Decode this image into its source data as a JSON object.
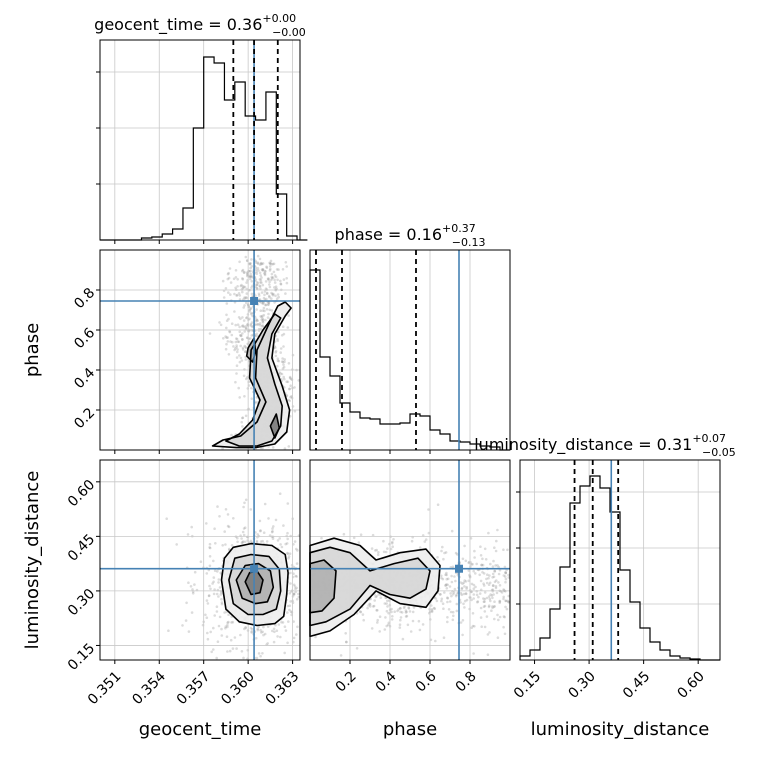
{
  "chart_data": {
    "type": "corner",
    "parameters": [
      "geocent_time",
      "phase",
      "luminosity_distance"
    ],
    "truths": {
      "geocent_time": 0.3604,
      "phase": 0.745,
      "luminosity_distance": 0.361
    },
    "colors": {
      "truth": "#4682b4",
      "hist": "#000000",
      "grid": "#c8c8c8",
      "points": "#9a9a9a"
    },
    "grid": true,
    "diagonal": [
      {
        "param": "geocent_time",
        "title_text": "geocent_time = 0.36",
        "title_sup": "+0.00",
        "title_sub": "−0.00",
        "quantiles": [
          0.359,
          0.3604,
          0.362
        ],
        "xlim": [
          0.35,
          0.3635
        ],
        "ylim": [
          0,
          1.0
        ],
        "bin_edges": [
          0.35,
          0.3507,
          0.3514,
          0.3521,
          0.3528,
          0.3535,
          0.3542,
          0.3549,
          0.3556,
          0.3563,
          0.357,
          0.3577,
          0.3584,
          0.3591,
          0.3598,
          0.3605,
          0.3612,
          0.3619,
          0.3626,
          0.3633,
          0.364
        ],
        "counts": [
          0,
          0,
          0,
          0,
          0.01,
          0.015,
          0.03,
          0.055,
          0.16,
          0.56,
          0.915,
          0.885,
          0.7,
          0.79,
          0.62,
          0.6,
          0.74,
          0.23,
          0.02,
          0
        ],
        "yticks": [
          0.28,
          0.56,
          0.84
        ]
      },
      {
        "param": "phase",
        "title_text": "phase = 0.16",
        "title_sup": "+0.37",
        "title_sub": "−0.13",
        "quantiles": [
          0.03,
          0.16,
          0.53
        ],
        "xlim": [
          0.0,
          1.0
        ],
        "ylim": [
          0,
          1.0
        ],
        "bin_edges": [
          0.0,
          0.05,
          0.1,
          0.15,
          0.2,
          0.25,
          0.3,
          0.35,
          0.4,
          0.45,
          0.5,
          0.55,
          0.6,
          0.65,
          0.7,
          0.75,
          0.8,
          0.85,
          0.9,
          0.95,
          1.0
        ],
        "counts": [
          0.9,
          0.465,
          0.37,
          0.235,
          0.19,
          0.16,
          0.155,
          0.13,
          0.13,
          0.135,
          0.18,
          0.17,
          0.1,
          0.08,
          0.045,
          0.04,
          0.03,
          0.02,
          0.015,
          0
        ],
        "yticks": []
      },
      {
        "param": "luminosity_distance",
        "title_text": "luminosity_distance = 0.31",
        "title_sup": "+0.07",
        "title_sub": "−0.05",
        "quantiles": [
          0.26,
          0.31,
          0.38
        ],
        "xlim": [
          0.11,
          0.66
        ],
        "ylim": [
          0,
          1.0
        ],
        "bin_edges": [
          0.11,
          0.1375,
          0.165,
          0.1925,
          0.22,
          0.2475,
          0.275,
          0.3025,
          0.33,
          0.3575,
          0.385,
          0.4125,
          0.44,
          0.4675,
          0.495,
          0.5225,
          0.55,
          0.5775,
          0.605,
          0.6325,
          0.66
        ],
        "counts": [
          0.02,
          0.05,
          0.11,
          0.255,
          0.465,
          0.785,
          0.87,
          0.92,
          0.86,
          0.74,
          0.45,
          0.29,
          0.16,
          0.09,
          0.05,
          0.02,
          0.01,
          0.005,
          0,
          0
        ],
        "yticks": [
          0.28,
          0.56,
          0.84
        ]
      }
    ],
    "axes": {
      "geocent_time": {
        "ticks": [
          0.351,
          0.354,
          0.357,
          0.36,
          0.363
        ],
        "tick_labels": [
          "0.351",
          "0.354",
          "0.357",
          "0.360",
          "0.363"
        ],
        "range": [
          0.35,
          0.3635
        ]
      },
      "phase": {
        "ticks": [
          0.2,
          0.4,
          0.6,
          0.8
        ],
        "tick_labels": [
          "0.2",
          "0.4",
          "0.6",
          "0.8"
        ],
        "range": [
          0.0,
          1.0
        ]
      },
      "luminosity_distance": {
        "ticks": [
          0.15,
          0.3,
          0.45,
          0.6
        ],
        "tick_labels": [
          "0.15",
          "0.30",
          "0.45",
          "0.60"
        ],
        "range": [
          0.11,
          0.66
        ]
      }
    },
    "xlabels": [
      "geocent_time",
      "phase",
      "luminosity_distance"
    ],
    "ylabels": [
      "phase",
      "luminosity_distance"
    ],
    "panels_2d": [
      {
        "x": "geocent_time",
        "y": "phase",
        "contours": [
          [
            [
              0.3592,
              0.012
            ],
            [
              0.3605,
              0.012
            ],
            [
              0.3618,
              0.03
            ],
            [
              0.3626,
              0.09
            ],
            [
              0.3628,
              0.2
            ],
            [
              0.3623,
              0.32
            ],
            [
              0.3616,
              0.46
            ],
            [
              0.3618,
              0.58
            ],
            [
              0.3625,
              0.67
            ],
            [
              0.3629,
              0.71
            ],
            [
              0.3625,
              0.74
            ],
            [
              0.362,
              0.72
            ],
            [
              0.3614,
              0.63
            ],
            [
              0.3606,
              0.5
            ],
            [
              0.3605,
              0.36
            ],
            [
              0.3612,
              0.24
            ],
            [
              0.3606,
              0.14
            ],
            [
              0.3595,
              0.07
            ],
            [
              0.3583,
              0.05
            ],
            [
              0.3576,
              0.02
            ]
          ],
          [
            [
              0.3594,
              0.02
            ],
            [
              0.3606,
              0.02
            ],
            [
              0.3616,
              0.045
            ],
            [
              0.3622,
              0.12
            ],
            [
              0.3623,
              0.22
            ],
            [
              0.3618,
              0.33
            ],
            [
              0.3613,
              0.46
            ],
            [
              0.3616,
              0.58
            ],
            [
              0.3622,
              0.66
            ],
            [
              0.3618,
              0.68
            ],
            [
              0.361,
              0.6
            ],
            [
              0.3602,
              0.5
            ],
            [
              0.3601,
              0.36
            ],
            [
              0.3608,
              0.25
            ],
            [
              0.3603,
              0.15
            ],
            [
              0.3594,
              0.08
            ],
            [
              0.3585,
              0.045
            ]
          ],
          [
            [
              0.36,
              0.51
            ],
            [
              0.3604,
              0.56
            ],
            [
              0.3605,
              0.49
            ],
            [
              0.3603,
              0.44
            ],
            [
              0.3599,
              0.47
            ]
          ],
          [
            [
              0.3618,
              0.06
            ],
            [
              0.3621,
              0.11
            ],
            [
              0.3619,
              0.18
            ],
            [
              0.3615,
              0.12
            ]
          ]
        ]
      },
      {
        "x": "geocent_time",
        "y": "luminosity_distance",
        "contours": [
          [
            [
              0.3582,
              0.33
            ],
            [
              0.3585,
              0.25
            ],
            [
              0.3594,
              0.215
            ],
            [
              0.3606,
              0.205
            ],
            [
              0.3618,
              0.21
            ],
            [
              0.3624,
              0.23
            ],
            [
              0.3626,
              0.29
            ],
            [
              0.3627,
              0.35
            ],
            [
              0.3625,
              0.4
            ],
            [
              0.3616,
              0.425
            ],
            [
              0.3602,
              0.43
            ],
            [
              0.359,
              0.42
            ],
            [
              0.3584,
              0.39
            ]
          ],
          [
            [
              0.3587,
              0.33
            ],
            [
              0.359,
              0.265
            ],
            [
              0.36,
              0.235
            ],
            [
              0.361,
              0.235
            ],
            [
              0.3619,
              0.25
            ],
            [
              0.3622,
              0.3
            ],
            [
              0.3621,
              0.36
            ],
            [
              0.3614,
              0.395
            ],
            [
              0.3602,
              0.4
            ],
            [
              0.3591,
              0.39
            ]
          ],
          [
            [
              0.3592,
              0.33
            ],
            [
              0.3596,
              0.28
            ],
            [
              0.3605,
              0.265
            ],
            [
              0.3613,
              0.27
            ],
            [
              0.3617,
              0.31
            ],
            [
              0.3615,
              0.355
            ],
            [
              0.3607,
              0.375
            ],
            [
              0.3598,
              0.37
            ]
          ],
          [
            [
              0.3598,
              0.325
            ],
            [
              0.3602,
              0.29
            ],
            [
              0.3608,
              0.295
            ],
            [
              0.361,
              0.33
            ],
            [
              0.3606,
              0.355
            ],
            [
              0.3601,
              0.35
            ]
          ]
        ]
      },
      {
        "x": "phase",
        "y": "luminosity_distance",
        "contours": [
          [
            [
              0.0,
              0.425
            ],
            [
              0.12,
              0.445
            ],
            [
              0.25,
              0.425
            ],
            [
              0.33,
              0.385
            ],
            [
              0.45,
              0.405
            ],
            [
              0.58,
              0.415
            ],
            [
              0.65,
              0.37
            ],
            [
              0.64,
              0.3
            ],
            [
              0.58,
              0.255
            ],
            [
              0.45,
              0.265
            ],
            [
              0.33,
              0.3
            ],
            [
              0.22,
              0.235
            ],
            [
              0.1,
              0.19
            ],
            [
              0.0,
              0.175
            ]
          ],
          [
            [
              0.0,
              0.405
            ],
            [
              0.1,
              0.42
            ],
            [
              0.2,
              0.405
            ],
            [
              0.3,
              0.355
            ],
            [
              0.42,
              0.375
            ],
            [
              0.54,
              0.39
            ],
            [
              0.6,
              0.355
            ],
            [
              0.58,
              0.305
            ],
            [
              0.5,
              0.28
            ],
            [
              0.4,
              0.29
            ],
            [
              0.3,
              0.315
            ],
            [
              0.2,
              0.25
            ],
            [
              0.08,
              0.215
            ],
            [
              0.0,
              0.205
            ]
          ],
          [
            [
              0.0,
              0.375
            ],
            [
              0.07,
              0.385
            ],
            [
              0.13,
              0.355
            ],
            [
              0.12,
              0.28
            ],
            [
              0.06,
              0.245
            ],
            [
              0.0,
              0.24
            ]
          ]
        ]
      }
    ]
  }
}
